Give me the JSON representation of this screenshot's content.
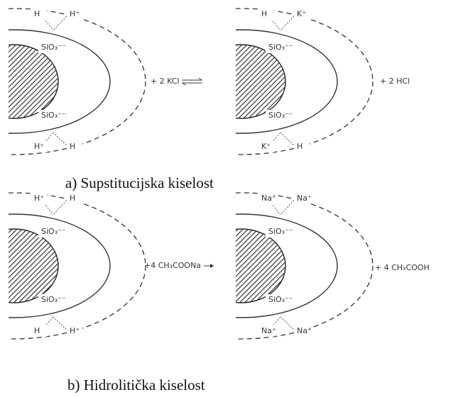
{
  "panels": [
    {
      "left_ions": [
        "H",
        "H⁺",
        "SiO₃⁻⁻",
        "SiO₃⁻⁻",
        "H⁺",
        "H"
      ],
      "reagent": "+ 2 KCl",
      "right_ions": [
        "H",
        "K⁺",
        "SiO₃⁻⁻",
        "SiO₃⁻⁻",
        "K⁺",
        "H"
      ],
      "product": "+ 2 HCl",
      "caption": "a) Supstitucijska kiselost"
    },
    {
      "left_ions": [
        "H⁺",
        "H",
        "SiO₃⁻⁻",
        "SiO₃⁻⁻",
        "H",
        "H⁺"
      ],
      "reagent": "+4 CH₃COONa",
      "right_ions": [
        "Na⁺",
        "Na⁺",
        "SiO₃⁻⁻",
        "SiO₃⁻⁻",
        "Na⁺",
        "Na⁺"
      ],
      "product": "+ 4 CH₃COOH",
      "caption": "b) Hidrolitička kiselost"
    }
  ]
}
